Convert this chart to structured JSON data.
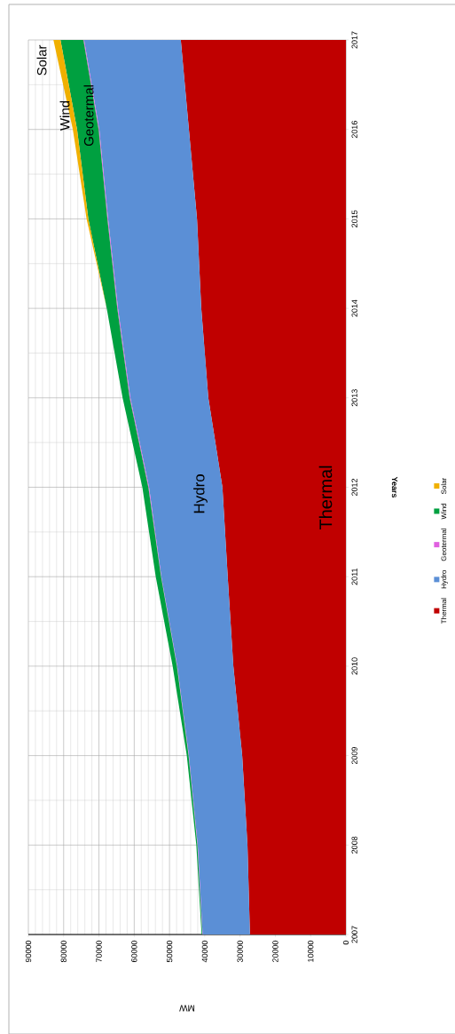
{
  "chart_data": {
    "type": "area",
    "stacked": true,
    "orientation": "horizontal",
    "xlabel": "MW",
    "ylabel": "Years",
    "x": [
      2007,
      2008,
      2009,
      2010,
      2011,
      2012,
      2013,
      2014,
      2015,
      2016,
      2017
    ],
    "series": [
      {
        "name": "Thermal",
        "color": "#c00000",
        "values": [
          27200,
          27900,
          29400,
          31900,
          33500,
          35000,
          39000,
          41000,
          42200,
          44500,
          46800
        ]
      },
      {
        "name": "Hydro",
        "color": "#5b8fd6",
        "values": [
          13400,
          14100,
          15100,
          15900,
          18800,
          20800,
          22100,
          23600,
          25200,
          25400,
          27400
        ]
      },
      {
        "name": "Geotermal",
        "color": "#e060e0",
        "values": [
          100,
          100,
          100,
          100,
          100,
          200,
          200,
          200,
          200,
          200,
          200
        ]
      },
      {
        "name": "Wind",
        "color": "#00a040",
        "values": [
          200,
          300,
          500,
          1200,
          1500,
          1700,
          2000,
          3000,
          5400,
          6100,
          6500
        ]
      },
      {
        "name": "Solar",
        "color": "#f0b000",
        "values": [
          0,
          0,
          0,
          0,
          0,
          0,
          0,
          0,
          500,
          1200,
          2000
        ]
      }
    ],
    "xlim": [
      90000,
      0
    ],
    "xticks": [
      90000,
      80000,
      70000,
      60000,
      50000,
      40000,
      30000,
      20000,
      10000,
      0
    ],
    "ylim": [
      2007,
      2017
    ],
    "yticks": [
      2007,
      2008,
      2009,
      2010,
      2011,
      2012,
      2013,
      2014,
      2015,
      2016,
      2017
    ],
    "grid": true,
    "legend": "right",
    "annotations": [
      "Thermal",
      "Hydro",
      "Geotermal",
      "Wind",
      "Solar"
    ]
  }
}
